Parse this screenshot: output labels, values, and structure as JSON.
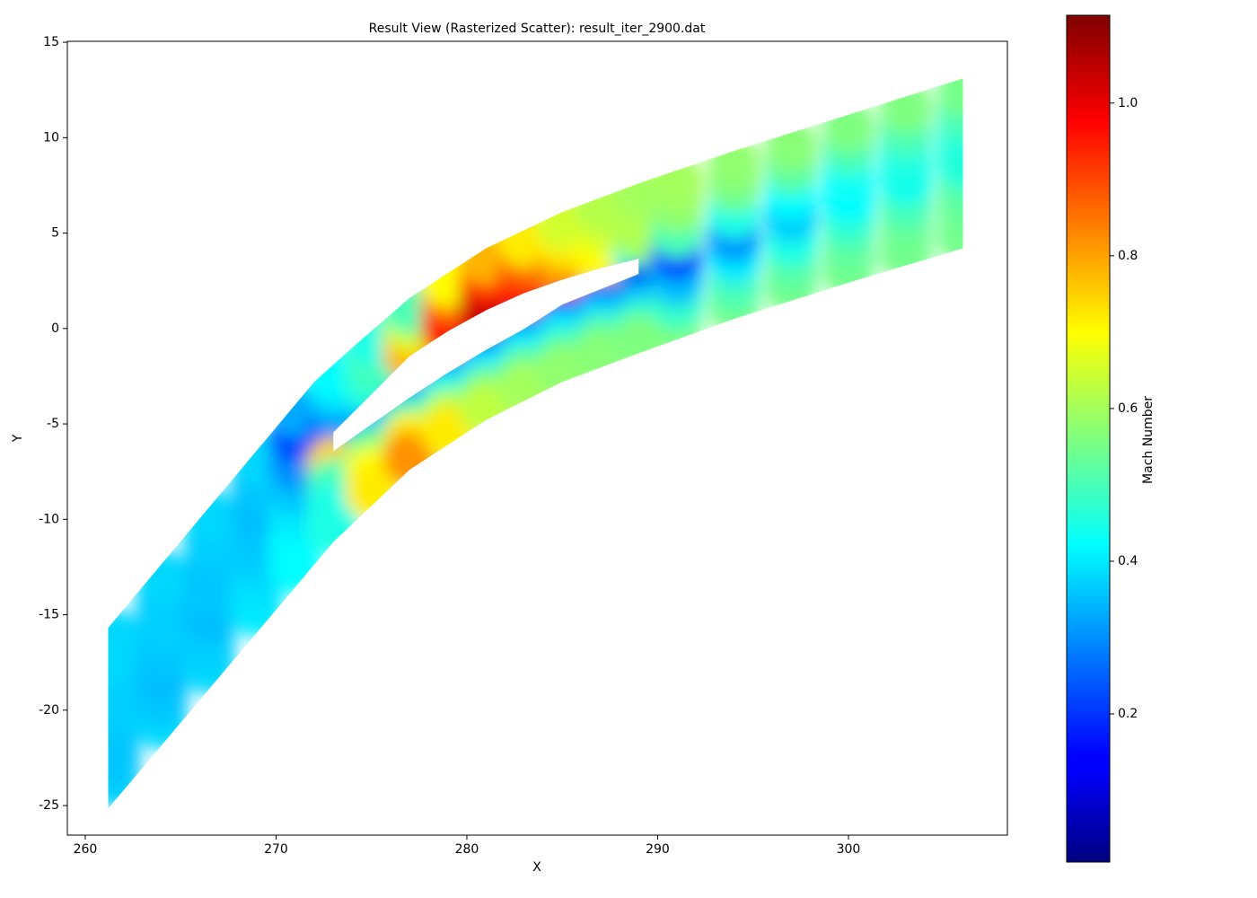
{
  "chart_data": {
    "type": "scatter",
    "title": "Result View (Rasterized Scatter): result_iter_2900.dat",
    "x_label": "X",
    "y_label": "Y",
    "xlim": [
      259.06,
      308.33
    ],
    "ylim": [
      -26.55,
      15.05
    ],
    "xticks": [
      260,
      270,
      280,
      290,
      300
    ],
    "yticks": [
      -25,
      -20,
      -15,
      -10,
      -5,
      0,
      5,
      10,
      15
    ],
    "colorbar": {
      "label": "Mach Number",
      "colormap": "jet",
      "lim": [
        0.006,
        1.115
      ],
      "ticks": [
        0.2,
        0.4,
        0.6,
        0.8,
        {
          "value": 1.0,
          "label": "1.0"
        }
      ]
    },
    "x": [
      261.5,
      261.5,
      261.5,
      261.5,
      261.5,
      261.5,
      261.5,
      264,
      264,
      264,
      264,
      264,
      264,
      264,
      266.5,
      266.5,
      266.5,
      266.5,
      266.5,
      266.5,
      266.5,
      269,
      269,
      269,
      269,
      269,
      269,
      269,
      271,
      271,
      271,
      271,
      271,
      271,
      271,
      273,
      273,
      273,
      273,
      273,
      273,
      273,
      273,
      275,
      275,
      275,
      275,
      275,
      275,
      275,
      275,
      277,
      277,
      277,
      277,
      277,
      277,
      277,
      277,
      279,
      279,
      279,
      279,
      279,
      279,
      279,
      279,
      281,
      281,
      281,
      281,
      281,
      281,
      281,
      281,
      283,
      283,
      283,
      283,
      283,
      283,
      283,
      283,
      285,
      285,
      285,
      285,
      285,
      285,
      285,
      285,
      287,
      287,
      287,
      287,
      287,
      287,
      287,
      287,
      289,
      289,
      289,
      289,
      289,
      289,
      289,
      289,
      291,
      291,
      291,
      291,
      291,
      291,
      291,
      294,
      294,
      294,
      294,
      294,
      294,
      294,
      297,
      297,
      297,
      297,
      297,
      297,
      297,
      300,
      300,
      300,
      300,
      300,
      300,
      300,
      303,
      303,
      303,
      303,
      303,
      303,
      303,
      306,
      306,
      306,
      306,
      306,
      306,
      306
    ],
    "y": [
      -23.7,
      -22.5,
      -21.1,
      -19.9,
      -18.7,
      -17.3,
      -16.1,
      -20.7,
      -19.4,
      -18.1,
      -16.9,
      -15.6,
      -14.3,
      -13.0,
      -17.8,
      -16.5,
      -15.1,
      -13.8,
      -12.5,
      -11.1,
      -9.8,
      -14.8,
      -13.5,
      -12.1,
      -10.8,
      -9.5,
      -8.1,
      -6.8,
      -12.5,
      -11.2,
      -9.7,
      -8.4,
      -7.1,
      -5.6,
      -4.3,
      -5.2,
      -4.3,
      -3.3,
      -2.4,
      -7.1,
      -8.2,
      -9.4,
      -10.5,
      -3.2,
      -2.4,
      -1.4,
      -0.6,
      -5.6,
      -6.6,
      -7.6,
      -8.6,
      -1.3,
      -0.5,
      0.3,
      1.1,
      -4.2,
      -5.0,
      -5.8,
      -6.8,
      0.0,
      0.8,
      1.7,
      2.5,
      -2.9,
      -3.7,
      -4.6,
      -5.4,
      1.1,
      1.9,
      2.8,
      3.7,
      -1.7,
      -2.5,
      -3.4,
      -4.2,
      2.1,
      2.9,
      3.8,
      4.6,
      -0.6,
      -1.4,
      -2.3,
      -3.1,
      2.8,
      3.7,
      4.6,
      5.5,
      0.3,
      -0.5,
      -1.4,
      -2.2,
      3.4,
      4.4,
      5.3,
      6.3,
      1.1,
      0.3,
      -0.6,
      -1.4,
      3.9,
      4.9,
      6.0,
      7.0,
      1.9,
      1.1,
      0.1,
      -0.7,
      0.0,
      1.3,
      2.6,
      3.9,
      5.1,
      6.4,
      7.7,
      1.1,
      2.3,
      3.7,
      4.9,
      6.1,
      7.5,
      8.7,
      2.1,
      3.3,
      4.6,
      5.9,
      7.1,
      8.4,
      9.6,
      3.0,
      4.2,
      5.6,
      6.8,
      8.0,
      9.4,
      10.6,
      3.9,
      5.2,
      6.5,
      7.8,
      9.0,
      10.3,
      11.6,
      4.8,
      6.1,
      7.4,
      8.7,
      9.9,
      11.2,
      12.5
    ],
    "values": [
      0.37,
      0.36,
      0.36,
      0.37,
      0.37,
      0.38,
      0.38,
      0.38,
      0.36,
      0.35,
      0.36,
      0.37,
      0.37,
      0.38,
      0.38,
      0.37,
      0.35,
      0.36,
      0.36,
      0.37,
      0.38,
      0.4,
      0.39,
      0.37,
      0.36,
      0.35,
      0.36,
      0.38,
      0.42,
      0.42,
      0.4,
      0.36,
      0.3,
      0.22,
      0.33,
      0.2,
      0.3,
      0.38,
      0.42,
      0.75,
      0.5,
      0.45,
      0.45,
      0.45,
      0.48,
      0.5,
      0.45,
      0.35,
      0.55,
      0.7,
      0.72,
      0.8,
      0.75,
      0.65,
      0.5,
      0.3,
      0.5,
      0.72,
      0.82,
      0.98,
      0.95,
      0.85,
      0.7,
      0.28,
      0.45,
      0.62,
      0.72,
      1.05,
      1.02,
      0.92,
      0.78,
      0.25,
      0.4,
      0.55,
      0.63,
      0.95,
      0.92,
      0.85,
      0.72,
      0.25,
      0.4,
      0.52,
      0.6,
      0.85,
      0.8,
      0.72,
      0.65,
      0.25,
      0.4,
      0.5,
      0.58,
      0.72,
      0.7,
      0.66,
      0.62,
      0.22,
      0.38,
      0.5,
      0.57,
      0.45,
      0.6,
      0.62,
      0.6,
      0.12,
      0.35,
      0.48,
      0.56,
      0.56,
      0.48,
      0.35,
      0.22,
      0.5,
      0.58,
      0.6,
      0.55,
      0.5,
      0.4,
      0.3,
      0.45,
      0.55,
      0.58,
      0.55,
      0.52,
      0.45,
      0.37,
      0.42,
      0.52,
      0.57,
      0.55,
      0.53,
      0.48,
      0.42,
      0.43,
      0.5,
      0.56,
      0.55,
      0.54,
      0.5,
      0.44,
      0.45,
      0.5,
      0.56,
      0.55,
      0.54,
      0.52,
      0.46,
      0.46,
      0.5,
      0.55
    ]
  }
}
